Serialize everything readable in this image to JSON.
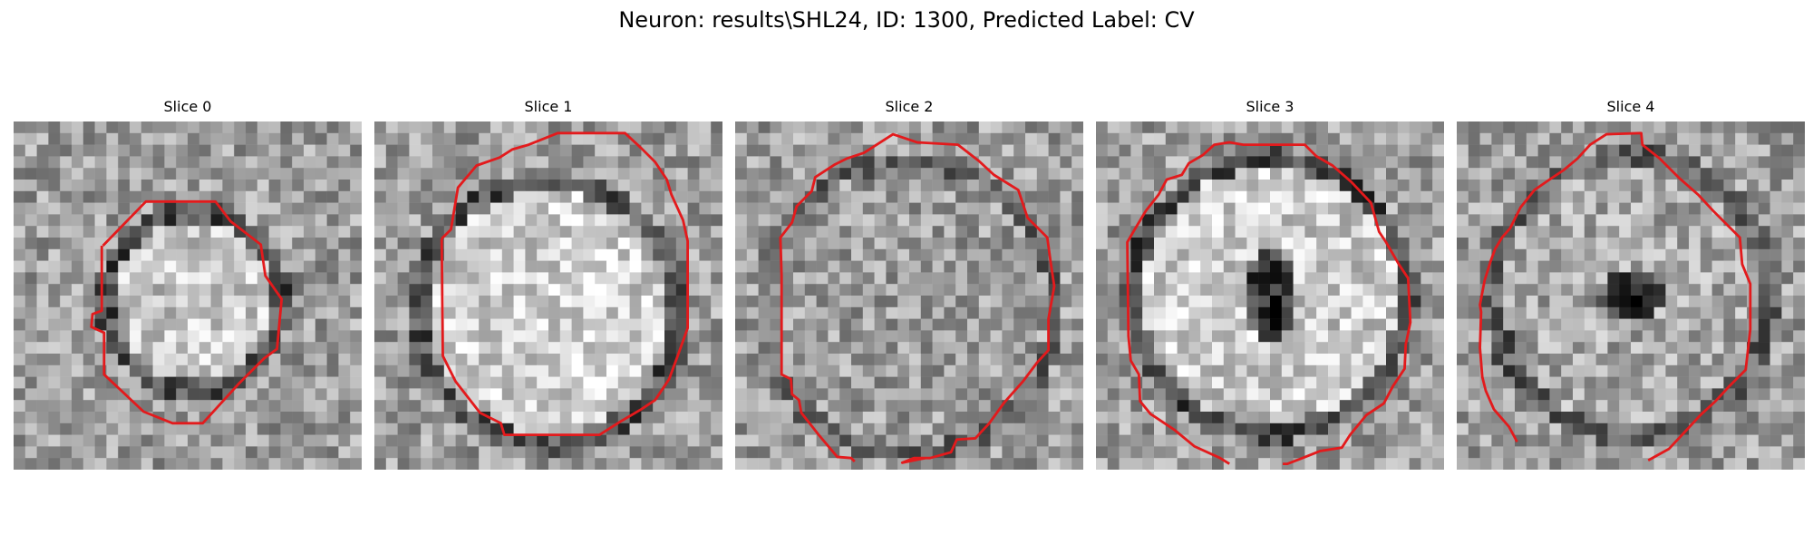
{
  "figure": {
    "title": "Neuron: results\\SHL24, ID: 1300, Predicted Label: CV"
  },
  "contour_color": "#e31a1c",
  "panels": [
    {
      "title": "Slice 0"
    },
    {
      "title": "Slice 1"
    },
    {
      "title": "Slice 2"
    },
    {
      "title": "Slice 3"
    },
    {
      "title": "Slice 4"
    }
  ]
}
